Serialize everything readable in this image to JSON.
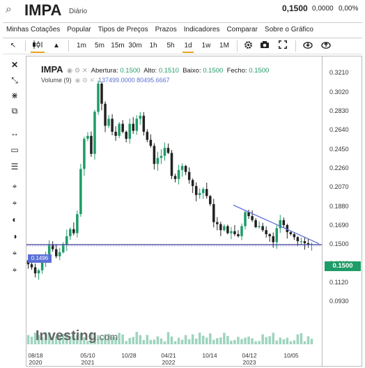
{
  "header": {
    "search_icon": "search-icon",
    "ticker": "IMPA",
    "period": "Diário",
    "price": "0,1500",
    "change": "0,0000",
    "change_pct": "0,00%"
  },
  "menu": [
    "Minhas Cotações",
    "Popular",
    "Tipos de Preços",
    "Prazos",
    "Indicadores",
    "Comparar",
    "Sobre o Gráfico"
  ],
  "toolbar": {
    "pointer": "↖",
    "candles": "candles-icon",
    "mountain": "▲",
    "intervals": [
      "1m",
      "5m",
      "15m",
      "30m",
      "1h",
      "5h",
      "1d",
      "1w",
      "1M"
    ],
    "selected": "1d",
    "icons": [
      "gear-icon",
      "camera-icon",
      "fullscreen-icon",
      "download-icon",
      "upload-icon"
    ]
  },
  "left_tools": [
    "✕",
    "⤡",
    "⋇",
    "⧉",
    "↔",
    "▭",
    "☰",
    "⌖",
    "⌖",
    "◐",
    "◑",
    "⌖",
    "⌖"
  ],
  "info": {
    "ticker": "IMPA",
    "open_label": "Abertura:",
    "open": "0.1500",
    "high_label": "Alto:",
    "high": "0.1510",
    "low_label": "Baixo:",
    "low": "0.1500",
    "close_label": "Fecho:",
    "close": "0.1500",
    "volume_label": "Volume (9)",
    "volume_values": "137499.0000 80495.6667"
  },
  "price_labels": {
    "left": "0.1496",
    "right": "0.1500"
  },
  "logo": {
    "name": "Investing",
    "suffix": ".com"
  },
  "colors": {
    "up": "#1e9c68",
    "down": "#222222",
    "trendline": "#5b6fd6",
    "level": "#3a3a9a"
  },
  "chart_data": {
    "type": "candlestick",
    "y_ticks": [
      "0.3210",
      "0.3020",
      "0.2830",
      "0.2640",
      "0.2450",
      "0.2260",
      "0.2070",
      "0.1880",
      "0.1690",
      "0.1500",
      "0.1310",
      "0.1120",
      "0.0930"
    ],
    "ylim": [
      0.085,
      0.335
    ],
    "x_ticks": [
      [
        "08/18",
        "2020"
      ],
      [
        "05/10",
        "2021"
      ],
      [
        "10/28",
        ""
      ],
      [
        "04/21",
        "2022"
      ],
      [
        "10/14",
        ""
      ],
      [
        "04/12",
        "2023"
      ],
      [
        "10/05",
        ""
      ]
    ],
    "horizontal_level": 0.1496,
    "trendline": {
      "start": {
        "date": "03/2023",
        "value": 0.189
      },
      "end": {
        "date": "12/2023",
        "value": 0.1505
      }
    },
    "closes": [
      0.13,
      0.127,
      0.121,
      0.124,
      0.133,
      0.14,
      0.149,
      0.145,
      0.138,
      0.142,
      0.15,
      0.158,
      0.165,
      0.161,
      0.18,
      0.225,
      0.255,
      0.258,
      0.24,
      0.282,
      0.31,
      0.29,
      0.268,
      0.275,
      0.262,
      0.258,
      0.27,
      0.262,
      0.255,
      0.27,
      0.263,
      0.275,
      0.278,
      0.262,
      0.254,
      0.248,
      0.23,
      0.236,
      0.238,
      0.246,
      0.241,
      0.218,
      0.215,
      0.224,
      0.228,
      0.222,
      0.214,
      0.208,
      0.199,
      0.201,
      0.205,
      0.198,
      0.19,
      0.172,
      0.17,
      0.164,
      0.168,
      0.161,
      0.163,
      0.16,
      0.158,
      0.168,
      0.182,
      0.178,
      0.174,
      0.167,
      0.168,
      0.164,
      0.16,
      0.158,
      0.152,
      0.166,
      0.174,
      0.169,
      0.162,
      0.16,
      0.157,
      0.153,
      0.153,
      0.151,
      0.15,
      0.15
    ]
  }
}
